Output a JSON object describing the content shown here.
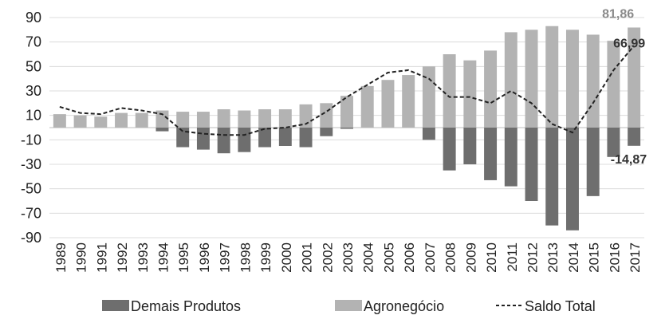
{
  "chart_data": {
    "type": "bar",
    "categories": [
      "1989",
      "1990",
      "1991",
      "1992",
      "1993",
      "1994",
      "1995",
      "1996",
      "1997",
      "1998",
      "1999",
      "2000",
      "2001",
      "2002",
      "2003",
      "2004",
      "2005",
      "2006",
      "2007",
      "2008",
      "2009",
      "2010",
      "2011",
      "2012",
      "2013",
      "2014",
      "2015",
      "2016",
      "2017"
    ],
    "series": [
      {
        "name": "Demais Produtos",
        "kind": "bar",
        "color": "#6e6e6e",
        "values": [
          0,
          0,
          0,
          0,
          0,
          -3,
          -16,
          -18,
          -21,
          -20,
          -16,
          -15,
          -16,
          -7,
          -1,
          0,
          0,
          0,
          -10,
          -35,
          -30,
          -43,
          -48,
          -60,
          -80,
          -84,
          -56,
          -24,
          -14.87
        ]
      },
      {
        "name": "Agronegócio",
        "kind": "bar",
        "color": "#b3b3b3",
        "values": [
          11,
          10,
          9,
          12,
          12,
          14,
          13,
          13,
          15,
          14,
          15,
          15,
          19,
          20,
          26,
          34,
          39,
          43,
          50,
          60,
          55,
          63,
          78,
          80,
          83,
          80,
          76,
          71,
          81.86
        ]
      },
      {
        "name": "Saldo Total",
        "kind": "line",
        "color": "#222222",
        "values": [
          17,
          12,
          11,
          16,
          14,
          11,
          -3,
          -5,
          -6,
          -6,
          -1,
          0,
          3,
          13,
          25,
          35,
          45,
          47,
          40,
          25,
          25,
          20,
          30,
          20,
          3,
          -4,
          20,
          47,
          66.99
        ]
      }
    ],
    "data_labels": [
      {
        "series": "Agronegócio",
        "category": "2017",
        "text": "81,86",
        "color": "#8a8a8a"
      },
      {
        "series": "Saldo Total",
        "category": "2017",
        "text": "66,99",
        "color": "#333333"
      },
      {
        "series": "Demais Produtos",
        "category": "2017",
        "text": "-14,87",
        "color": "#333333"
      }
    ],
    "yticks": [
      "90",
      "70",
      "50",
      "30",
      "10",
      "-10",
      "-30",
      "-50",
      "-70",
      "-90"
    ],
    "ylim": [
      -90,
      90
    ],
    "legend": {
      "position": "bottom",
      "items": [
        {
          "label": "Demais Produtos",
          "marker": "bar",
          "color": "#6e6e6e"
        },
        {
          "label": "Agronegócio",
          "marker": "bar",
          "color": "#b3b3b3"
        },
        {
          "label": "Saldo Total",
          "marker": "dashed-line",
          "color": "#222222"
        }
      ]
    },
    "grid": {
      "horizontal": true,
      "color": "#dcdcdc"
    }
  }
}
